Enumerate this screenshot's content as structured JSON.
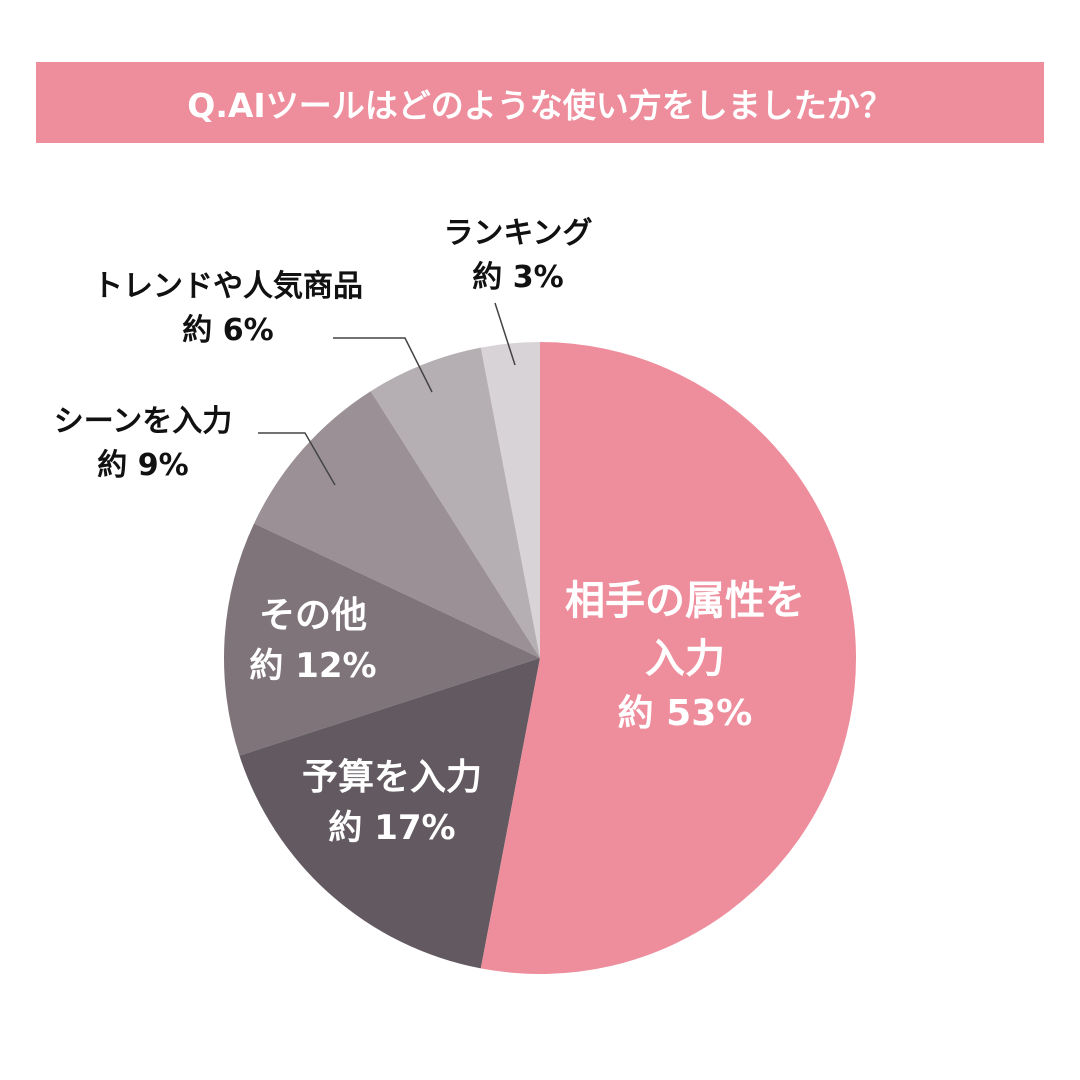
{
  "chart_data": {
    "type": "pie",
    "title": "Q.AIツールはどのような使い方をしましたか？",
    "categories": [
      "相手の属性を入力",
      "予算を入力",
      "その他",
      "シーンを入力",
      "トレンドや人気商品",
      "ランキング"
    ],
    "values": [
      53,
      17,
      12,
      9,
      6,
      3
    ],
    "value_labels": [
      "約 53%",
      "約 17%",
      "約 12%",
      "約 9%",
      "約 6%",
      "約 3%"
    ],
    "colors": [
      "#ee8d9c",
      "#625a60",
      "#7e7479",
      "#9a9095",
      "#b5aeb2",
      "#d8d3d6"
    ]
  }
}
